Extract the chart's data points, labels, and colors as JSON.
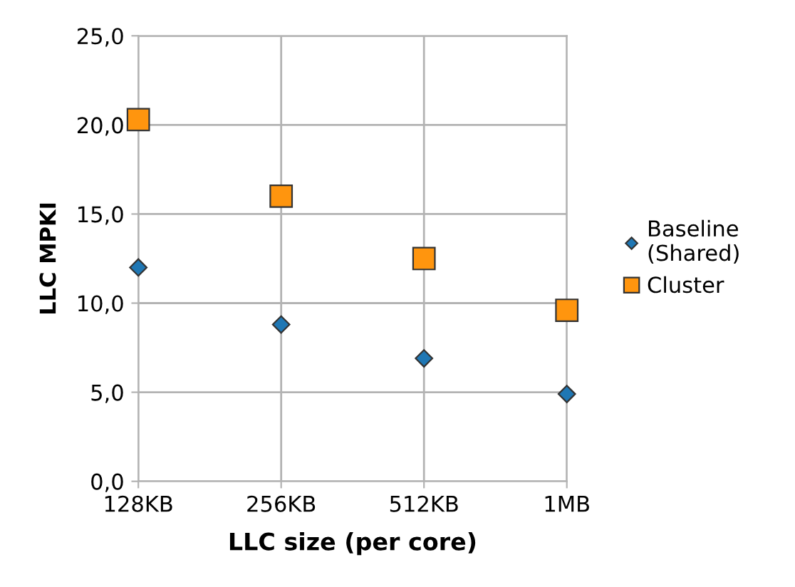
{
  "chart_data": {
    "type": "scatter",
    "xlabel": "LLC size (per core)",
    "ylabel": "LLC MPKI",
    "categories": [
      "128KB",
      "256KB",
      "512KB",
      "1MB"
    ],
    "series": [
      {
        "name": "Baseline\n(Shared)",
        "color": "#1f77b4",
        "marker": "diamond",
        "values": [
          12.0,
          8.8,
          6.9,
          4.9
        ]
      },
      {
        "name": "Cluster",
        "color": "#ff950e",
        "marker": "square",
        "values": [
          20.3,
          16.0,
          12.5,
          9.6
        ]
      }
    ],
    "ylim": [
      0,
      25
    ],
    "yticks": [
      {
        "value": 0,
        "label": "0,0"
      },
      {
        "value": 5,
        "label": "5,0"
      },
      {
        "value": 10,
        "label": "10,0"
      },
      {
        "value": 15,
        "label": "15,0"
      },
      {
        "value": 20,
        "label": "20,0"
      },
      {
        "value": 25,
        "label": "25,0"
      }
    ],
    "grid": true,
    "legend": "right"
  }
}
